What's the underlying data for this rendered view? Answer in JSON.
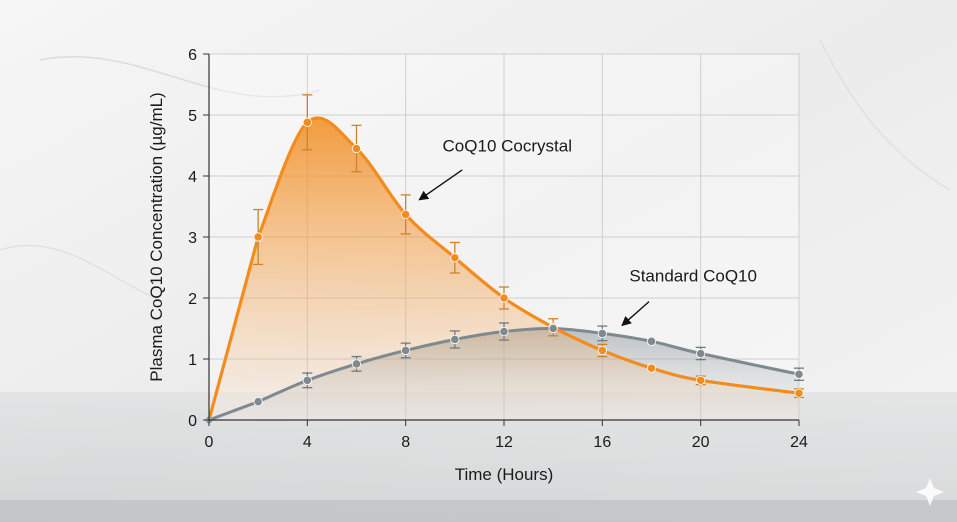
{
  "chart_data": {
    "type": "line",
    "title": "",
    "xlabel": "Time (Hours)",
    "ylabel": "Plasma CoQ10 Concentration (µg/mL)",
    "xlim": [
      0,
      24
    ],
    "ylim": [
      0,
      6
    ],
    "x_ticks": [
      "0",
      "4",
      "8",
      "12",
      "16",
      "20",
      "24"
    ],
    "y_ticks": [
      "0",
      "1",
      "2",
      "3",
      "4",
      "5",
      "6"
    ],
    "grid": true,
    "series": [
      {
        "name": "CoQ10 Cocrystal",
        "color": "#f28c1e",
        "x": [
          0,
          2,
          4,
          6,
          8,
          10,
          12,
          14,
          16,
          18,
          20,
          24
        ],
        "y": [
          0,
          3.0,
          4.88,
          4.45,
          3.37,
          2.66,
          2.0,
          1.52,
          1.14,
          0.85,
          0.65,
          0.44
        ],
        "error": [
          0,
          0.45,
          0.45,
          0.38,
          0.32,
          0.25,
          0.18,
          0.14,
          0.1,
          0,
          0.07,
          0.07
        ]
      },
      {
        "name": "Standard CoQ10",
        "color": "#7e8a90",
        "x": [
          0,
          2,
          4,
          6,
          8,
          10,
          12,
          14,
          16,
          18,
          20,
          24
        ],
        "y": [
          0,
          0.3,
          0.65,
          0.92,
          1.14,
          1.32,
          1.45,
          1.5,
          1.42,
          1.29,
          1.09,
          0.75
        ],
        "error": [
          0,
          0,
          0.12,
          0.12,
          0.12,
          0.14,
          0.14,
          0,
          0.12,
          0,
          0.1,
          0.1
        ]
      }
    ],
    "annotations": [
      {
        "text": "CoQ10 Cocrystal",
        "series": 0
      },
      {
        "text": "Standard CoQ10",
        "series": 1
      }
    ]
  }
}
